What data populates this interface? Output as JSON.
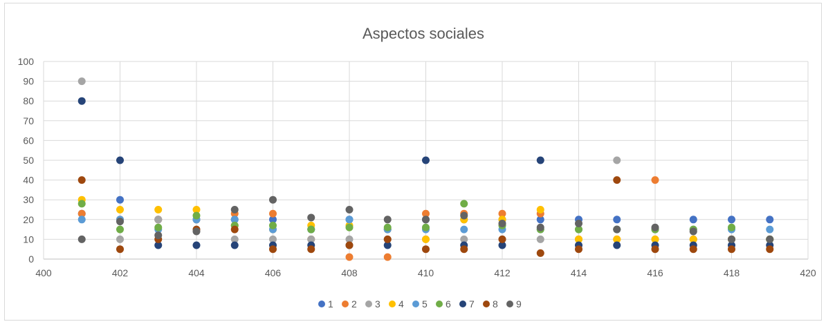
{
  "chart_data": {
    "type": "scatter",
    "title": "Aspectos sociales",
    "xlabel": "",
    "ylabel": "",
    "xlim": [
      400,
      420
    ],
    "ylim": [
      0,
      100
    ],
    "x_ticks": [
      400,
      402,
      404,
      406,
      408,
      410,
      412,
      414,
      416,
      418,
      420
    ],
    "y_ticks": [
      0,
      10,
      20,
      30,
      40,
      50,
      60,
      70,
      80,
      90,
      100
    ],
    "grid": true,
    "legend_position": "bottom",
    "series": [
      {
        "name": "1",
        "color": "#4472C4",
        "points": [
          [
            401,
            23
          ],
          [
            402,
            30
          ],
          [
            403,
            20
          ],
          [
            404,
            20
          ],
          [
            405,
            20
          ],
          [
            406,
            20
          ],
          [
            407,
            15
          ],
          [
            408,
            20
          ],
          [
            409,
            15
          ],
          [
            410,
            20
          ],
          [
            411,
            20
          ],
          [
            412,
            20
          ],
          [
            413,
            20
          ],
          [
            414,
            20
          ],
          [
            415,
            20
          ],
          [
            416,
            15
          ],
          [
            417,
            20
          ],
          [
            418,
            20
          ],
          [
            419,
            20
          ]
        ]
      },
      {
        "name": "2",
        "color": "#ED7D31",
        "points": [
          [
            401,
            23
          ],
          [
            402,
            20
          ],
          [
            403,
            20
          ],
          [
            404,
            20
          ],
          [
            405,
            23
          ],
          [
            406,
            23
          ],
          [
            407,
            10
          ],
          [
            408,
            1
          ],
          [
            409,
            1
          ],
          [
            410,
            23
          ],
          [
            411,
            23
          ],
          [
            412,
            23
          ],
          [
            413,
            23
          ],
          [
            414,
            10
          ],
          [
            415,
            10
          ],
          [
            416,
            40
          ],
          [
            417,
            10
          ],
          [
            418,
            10
          ],
          [
            419,
            10
          ]
        ]
      },
      {
        "name": "3",
        "color": "#A5A5A5",
        "points": [
          [
            401,
            90
          ],
          [
            402,
            10
          ],
          [
            403,
            20
          ],
          [
            404,
            20
          ],
          [
            405,
            10
          ],
          [
            406,
            10
          ],
          [
            407,
            10
          ],
          [
            408,
            10
          ],
          [
            409,
            10
          ],
          [
            410,
            10
          ],
          [
            411,
            10
          ],
          [
            412,
            10
          ],
          [
            413,
            10
          ],
          [
            414,
            10
          ],
          [
            415,
            50
          ],
          [
            416,
            10
          ],
          [
            417,
            10
          ],
          [
            418,
            10
          ],
          [
            419,
            10
          ]
        ]
      },
      {
        "name": "4",
        "color": "#FFC000",
        "points": [
          [
            401,
            30
          ],
          [
            402,
            25
          ],
          [
            403,
            25
          ],
          [
            404,
            25
          ],
          [
            405,
            17
          ],
          [
            406,
            15
          ],
          [
            407,
            17
          ],
          [
            408,
            17
          ],
          [
            409,
            15
          ],
          [
            410,
            10
          ],
          [
            411,
            20
          ],
          [
            412,
            20
          ],
          [
            413,
            25
          ],
          [
            414,
            10
          ],
          [
            415,
            10
          ],
          [
            416,
            10
          ],
          [
            417,
            10
          ],
          [
            418,
            10
          ],
          [
            419,
            10
          ]
        ]
      },
      {
        "name": "5",
        "color": "#5B9BD5",
        "points": [
          [
            401,
            20
          ],
          [
            402,
            20
          ],
          [
            403,
            15
          ],
          [
            404,
            20
          ],
          [
            405,
            20
          ],
          [
            406,
            15
          ],
          [
            407,
            15
          ],
          [
            408,
            20
          ],
          [
            409,
            15
          ],
          [
            410,
            15
          ],
          [
            411,
            15
          ],
          [
            412,
            15
          ],
          [
            413,
            15
          ],
          [
            414,
            15
          ],
          [
            415,
            15
          ],
          [
            416,
            15
          ],
          [
            417,
            15
          ],
          [
            418,
            15
          ],
          [
            419,
            15
          ]
        ]
      },
      {
        "name": "6",
        "color": "#70AD47",
        "points": [
          [
            401,
            28
          ],
          [
            402,
            15
          ],
          [
            403,
            16
          ],
          [
            404,
            22
          ],
          [
            405,
            17
          ],
          [
            406,
            17
          ],
          [
            407,
            15
          ],
          [
            408,
            16
          ],
          [
            409,
            16
          ],
          [
            410,
            16
          ],
          [
            411,
            28
          ],
          [
            412,
            17
          ],
          [
            413,
            15
          ],
          [
            414,
            15
          ],
          [
            415,
            15
          ],
          [
            416,
            15
          ],
          [
            417,
            15
          ],
          [
            418,
            16
          ],
          [
            419,
            10
          ]
        ]
      },
      {
        "name": "7",
        "color": "#264478",
        "points": [
          [
            401,
            80
          ],
          [
            402,
            50
          ],
          [
            403,
            7
          ],
          [
            404,
            7
          ],
          [
            405,
            7
          ],
          [
            406,
            7
          ],
          [
            407,
            7
          ],
          [
            408,
            7
          ],
          [
            409,
            7
          ],
          [
            410,
            50
          ],
          [
            411,
            7
          ],
          [
            412,
            7
          ],
          [
            413,
            50
          ],
          [
            414,
            7
          ],
          [
            415,
            7
          ],
          [
            416,
            7
          ],
          [
            417,
            7
          ],
          [
            418,
            7
          ],
          [
            419,
            7
          ]
        ]
      },
      {
        "name": "8",
        "color": "#9E480E",
        "points": [
          [
            401,
            40
          ],
          [
            402,
            5
          ],
          [
            403,
            10
          ],
          [
            404,
            15
          ],
          [
            405,
            15
          ],
          [
            406,
            5
          ],
          [
            407,
            5
          ],
          [
            408,
            7
          ],
          [
            409,
            10
          ],
          [
            410,
            5
          ],
          [
            411,
            5
          ],
          [
            412,
            10
          ],
          [
            413,
            3
          ],
          [
            414,
            5
          ],
          [
            415,
            40
          ],
          [
            416,
            5
          ],
          [
            417,
            5
          ],
          [
            418,
            5
          ],
          [
            419,
            5
          ]
        ]
      },
      {
        "name": "9",
        "color": "#636363",
        "points": [
          [
            401,
            10
          ],
          [
            402,
            19
          ],
          [
            403,
            12
          ],
          [
            404,
            14
          ],
          [
            405,
            25
          ],
          [
            406,
            30
          ],
          [
            407,
            21
          ],
          [
            408,
            25
          ],
          [
            409,
            20
          ],
          [
            410,
            20
          ],
          [
            411,
            22
          ],
          [
            412,
            18
          ],
          [
            413,
            16
          ],
          [
            414,
            18
          ],
          [
            415,
            15
          ],
          [
            416,
            16
          ],
          [
            417,
            14
          ],
          [
            418,
            10
          ],
          [
            419,
            10
          ]
        ]
      }
    ]
  }
}
